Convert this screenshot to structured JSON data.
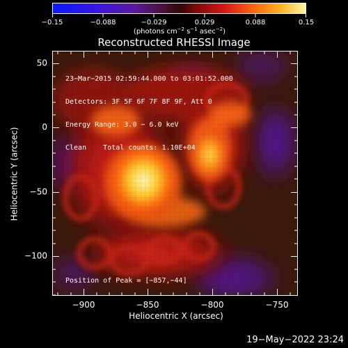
{
  "colorbar": {
    "tick_labels": [
      "−0.15",
      "−0.088",
      "−0.029",
      "0.029",
      "0.088",
      "0.15"
    ],
    "unit_prefix": "(photons cm",
    "unit_exp1": "−2",
    "unit_mid1": " s",
    "unit_exp2": "−1",
    "unit_mid2": " asec",
    "unit_exp3": "−2",
    "unit_suffix": ")"
  },
  "title": "Reconstructed RHESSI Image",
  "annotations": {
    "time_range": "23−Mar−2015 02:59:44.000 to 03:01:52.000",
    "detectors": "Detectors: 3F 5F 6F 7F 8F 9F, Att 0",
    "energy_range": "Energy Range: 3.0 − 6.0 keV",
    "clean_counts": "Clean    Total counts: 1.10E+04",
    "peak_position": "Position of Peak = [−857,−44]"
  },
  "axes": {
    "x_label": "Heliocentric X (arcsec)",
    "y_label": "Heliocentric Y (arcsec)",
    "x_ticks": [
      "−900",
      "−850",
      "−800",
      "−750"
    ],
    "y_ticks": [
      "50",
      "0",
      "−50",
      "−100"
    ],
    "x_range": [
      -920,
      -730
    ],
    "y_range": [
      -130,
      60
    ]
  },
  "footer": {
    "date": "19−May−2022 23:24"
  },
  "colors": {
    "background": "#000000",
    "axis": "#ffffff",
    "colormap": [
      "#0a1aff",
      "#4a12c8",
      "#5a1890",
      "#3a1606",
      "#b01010",
      "#e84010",
      "#ff9a10",
      "#fff060"
    ]
  }
}
